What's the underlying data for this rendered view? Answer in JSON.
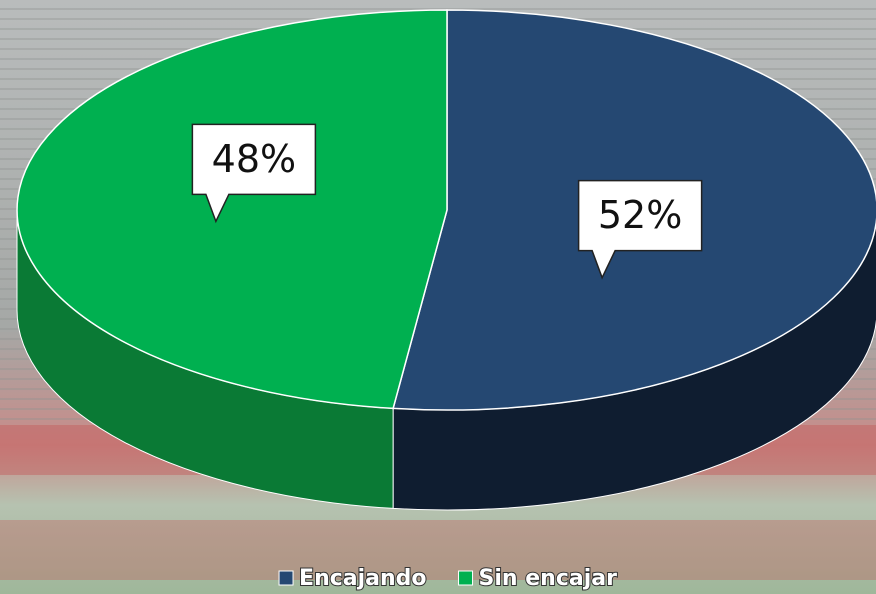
{
  "chart_data": {
    "type": "pie",
    "categories": [
      "Encajando",
      "Sin encajar"
    ],
    "values": [
      52,
      48
    ],
    "value_labels": [
      "52%",
      "48%"
    ],
    "colors": [
      "#254872",
      "#00b050"
    ],
    "side_colors": [
      "#0f1d30",
      "#0a7a35"
    ],
    "legend": "bottom"
  }
}
